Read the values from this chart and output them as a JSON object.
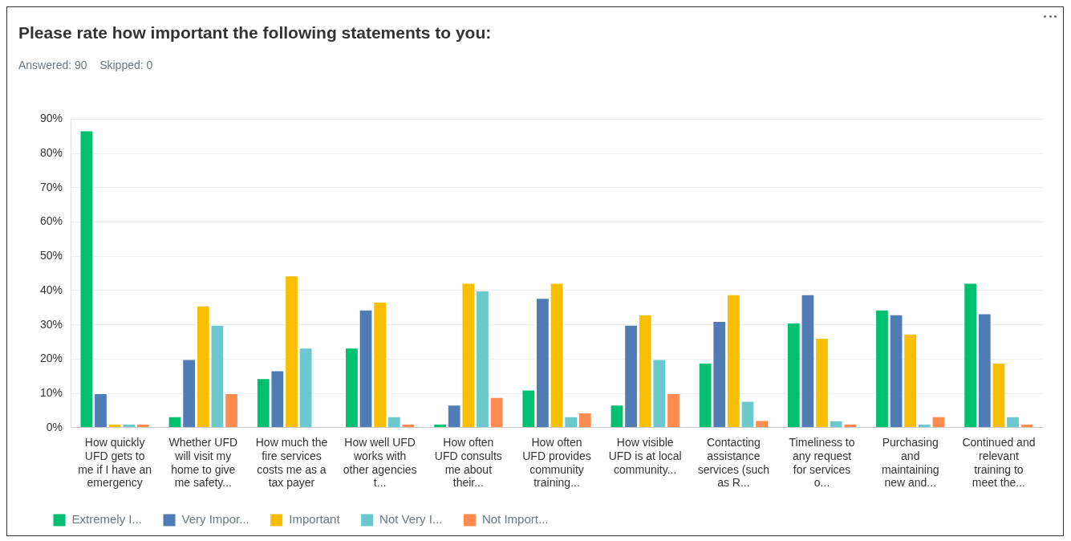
{
  "chart_data": {
    "type": "bar",
    "title": "Please rate how important the following statements to you:",
    "subtitle": "Answered: 90    Skipped: 0",
    "categories": [
      "How quickly UFD gets to me if I have an emergency",
      "Whether UFD will visit my home to give me safety...",
      "How much the fire services costs me as a tax payer",
      "How well UFD works with other agencies t...",
      "How often UFD consults me about their...",
      "How often UFD provides community training...",
      "How visible UFD is at local community...",
      "Contacting assistance services (such as R...",
      "Timeliness to any request for services o...",
      "Purchasing and maintaining new and...",
      "Continued and relevant training to meet the..."
    ],
    "series": [
      {
        "name": "Extremely I...",
        "color": "#00bf6f",
        "values": [
          86.7,
          3.3,
          14.4,
          23.3,
          1.1,
          11.1,
          6.7,
          18.9,
          30.6,
          34.4,
          42.2
        ]
      },
      {
        "name": "Very Impor...",
        "color": "#507cb6",
        "values": [
          10,
          20,
          16.7,
          34.4,
          6.7,
          37.8,
          30,
          31.1,
          38.9,
          33,
          33.3
        ]
      },
      {
        "name": "Important",
        "color": "#f9be00",
        "values": [
          1.1,
          35.6,
          44.4,
          36.7,
          42.2,
          42.2,
          33,
          38.9,
          26.2,
          27.4,
          18.9
        ]
      },
      {
        "name": "Not Very I...",
        "color": "#6bc8cd",
        "values": [
          1.1,
          30,
          23.3,
          3.3,
          40,
          3.3,
          20,
          7.8,
          2.1,
          1.1,
          3.3
        ]
      },
      {
        "name": "Not Import...",
        "color": "#ff8b4f",
        "values": [
          1.1,
          10,
          0,
          1.1,
          8.9,
          4.4,
          10,
          2.2,
          1.1,
          3.3,
          1.1
        ]
      }
    ],
    "ylim": [
      0,
      90
    ],
    "yticks": [
      {
        "value": 0,
        "label": "0%"
      },
      {
        "value": 10,
        "label": "10%"
      },
      {
        "value": 20,
        "label": "20%"
      },
      {
        "value": 30,
        "label": "30%"
      },
      {
        "value": 40,
        "label": "40%"
      },
      {
        "value": 50,
        "label": "50%"
      },
      {
        "value": 60,
        "label": "60%"
      },
      {
        "value": 70,
        "label": "70%"
      },
      {
        "value": 80,
        "label": "80%"
      },
      {
        "value": 90,
        "label": "90%"
      }
    ],
    "grid": "y",
    "legend": "bottom left"
  }
}
